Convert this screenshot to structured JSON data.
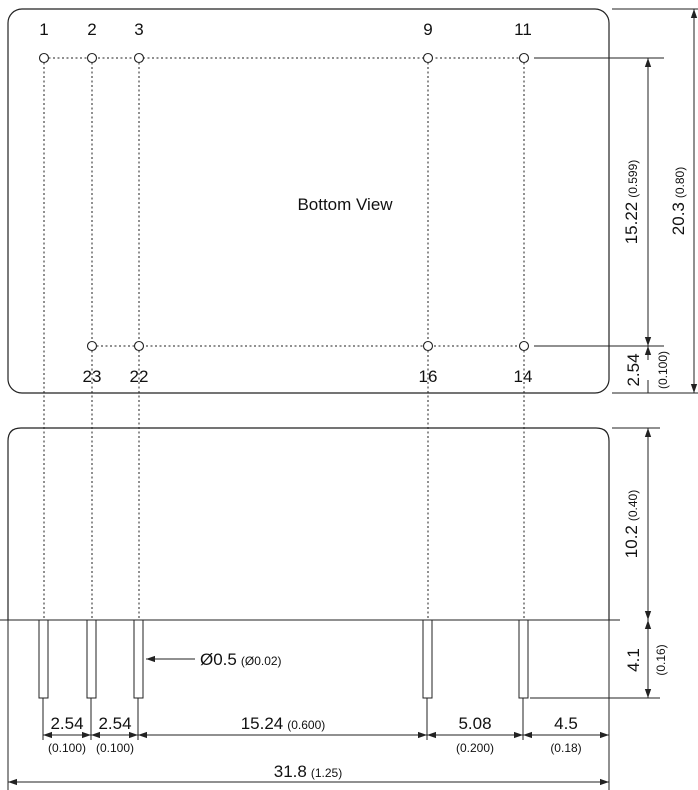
{
  "bottom_view": {
    "label": "Bottom View",
    "top_pins": [
      "1",
      "2",
      "3",
      "9",
      "11"
    ],
    "bottom_pins": [
      "23",
      "22",
      "16",
      "14"
    ]
  },
  "dimensions": {
    "vertical_15_22": {
      "value": "15.22",
      "inch": "(0.599)"
    },
    "vertical_20_3": {
      "value": "20.3",
      "inch": "(0.80)"
    },
    "vertical_2_54": {
      "value": "2.54",
      "inch": "(0.100)"
    },
    "vertical_10_2": {
      "value": "10.2",
      "inch": "(0.40)"
    },
    "vertical_4_1": {
      "value": "4.1",
      "inch": "(0.16)"
    },
    "pin_diameter": {
      "value": "Ø0.5",
      "inch": "(Ø0.02)"
    },
    "h_2_54_a": {
      "value": "2.54",
      "inch": "(0.100)"
    },
    "h_2_54_b": {
      "value": "2.54",
      "inch": "(0.100)"
    },
    "h_15_24": {
      "value": "15.24",
      "inch": "(0.600)"
    },
    "h_5_08": {
      "value": "5.08",
      "inch": "(0.200)"
    },
    "h_4_5": {
      "value": "4.5",
      "inch": "(0.18)"
    },
    "h_31_8": {
      "value": "31.8",
      "inch": "(1.25)"
    }
  }
}
